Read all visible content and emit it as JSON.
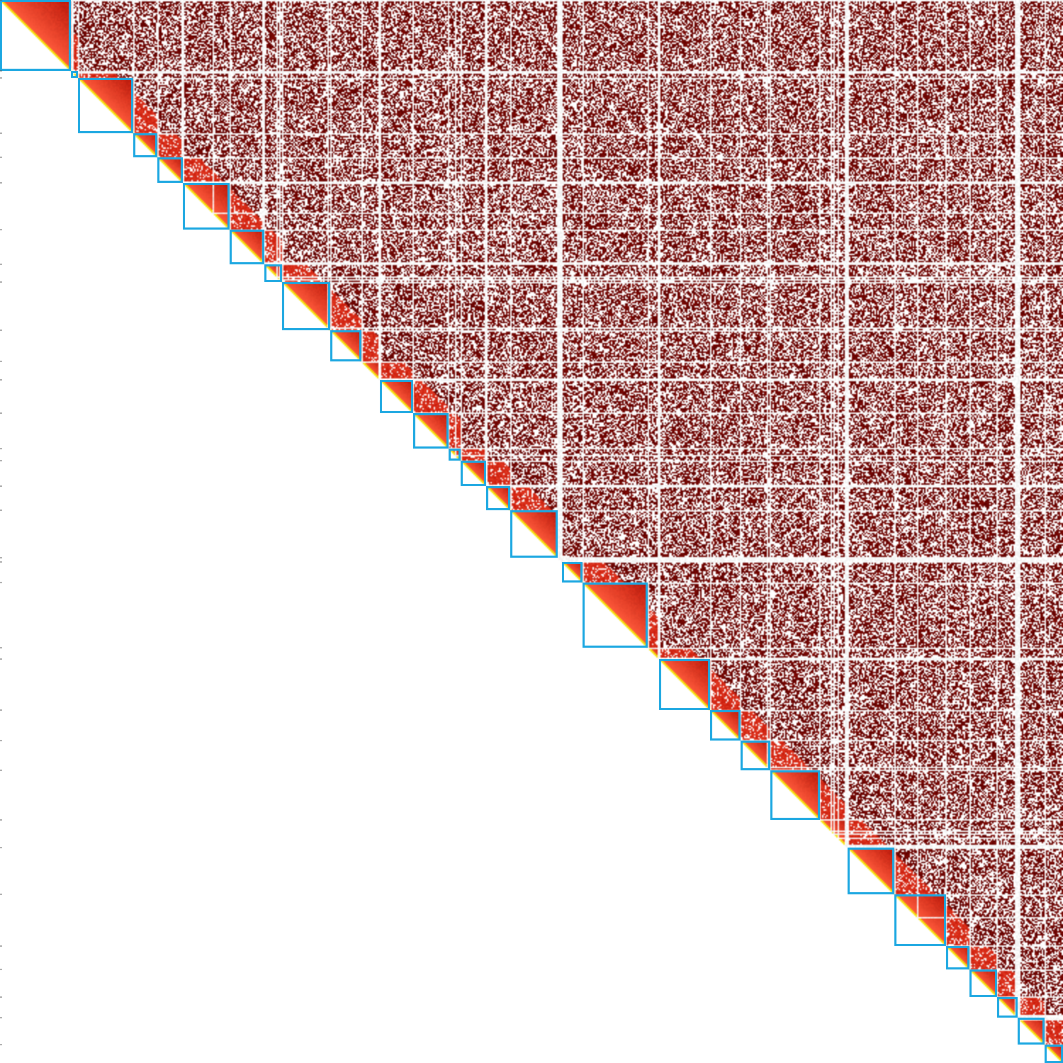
{
  "chart_data": {
    "type": "heatmap",
    "title": "",
    "xlabel": "",
    "ylabel": "",
    "colormap": {
      "empty": "#ffffff",
      "low": "#5a0000",
      "mid": "#c81a0a",
      "high": "#ff5a3c",
      "diagonal": "#f6e20a"
    },
    "grid_line_color": "#f2f2f2",
    "scaffold_outline_color": "#1ba7e1",
    "matrix_range": [
      0,
      1500
    ],
    "scaffold_boundaries": [
      [
        0,
        100
      ],
      [
        100,
        110
      ],
      [
        110,
        188
      ],
      [
        188,
        222
      ],
      [
        222,
        258
      ],
      [
        258,
        324
      ],
      [
        324,
        373
      ],
      [
        373,
        398
      ],
      [
        398,
        466
      ],
      [
        466,
        510
      ],
      [
        510,
        536
      ],
      [
        536,
        583
      ],
      [
        583,
        633
      ],
      [
        633,
        650
      ],
      [
        650,
        686
      ],
      [
        686,
        720
      ],
      [
        720,
        787
      ],
      [
        787,
        793
      ],
      [
        793,
        822
      ],
      [
        822,
        914
      ],
      [
        914,
        930
      ],
      [
        930,
        1002
      ],
      [
        1002,
        1045
      ],
      [
        1045,
        1087
      ],
      [
        1087,
        1157
      ],
      [
        1157,
        1196
      ],
      [
        1196,
        1262
      ],
      [
        1262,
        1335
      ],
      [
        1335,
        1368
      ],
      [
        1368,
        1407
      ],
      [
        1407,
        1436
      ],
      [
        1436,
        1474
      ],
      [
        1474,
        1500
      ]
    ],
    "outlined_scaffolds": [
      [
        0,
        100
      ],
      [
        100,
        110
      ],
      [
        110,
        188
      ],
      [
        188,
        222
      ],
      [
        222,
        258
      ],
      [
        258,
        324
      ],
      [
        324,
        373
      ],
      [
        373,
        398
      ],
      [
        398,
        466
      ],
      [
        466,
        510
      ],
      [
        536,
        583
      ],
      [
        583,
        633
      ],
      [
        633,
        650
      ],
      [
        650,
        686
      ],
      [
        686,
        720
      ],
      [
        720,
        787
      ],
      [
        793,
        822
      ],
      [
        822,
        914
      ],
      [
        930,
        1002
      ],
      [
        1002,
        1045
      ],
      [
        1045,
        1087
      ],
      [
        1087,
        1157
      ],
      [
        1196,
        1262
      ],
      [
        1262,
        1335
      ],
      [
        1335,
        1368
      ],
      [
        1368,
        1407
      ],
      [
        1407,
        1436
      ],
      [
        1436,
        1474
      ],
      [
        1474,
        1500
      ]
    ],
    "sparse_rows": [
      103,
      222,
      256,
      300,
      324,
      370,
      390,
      395,
      463,
      535,
      583,
      633,
      643,
      684,
      786,
      788,
      790,
      928,
      1002,
      1045,
      1082,
      1172,
      1176,
      1182,
      1192,
      1195,
      1294,
      1433,
      1435,
      1438
    ]
  }
}
